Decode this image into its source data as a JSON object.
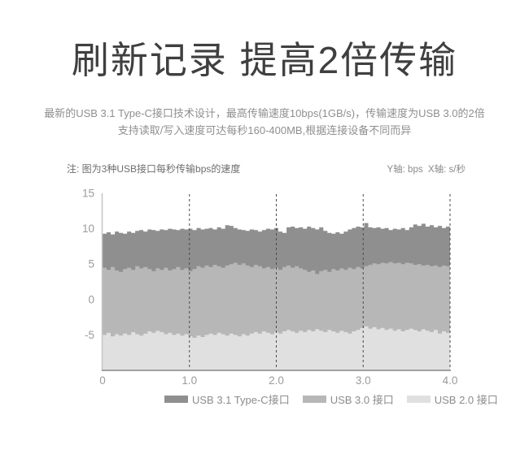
{
  "header": {
    "title": "刷新记录 提高2倍传输",
    "subtitle_line1": "最新的USB 3.1 Type-C接口技术设计，最高传输速度10bps(1GB/s)，传输速度为USB 3.0的2倍",
    "subtitle_line2": "支持读取/写入速度可达每秒160-400MB,根据连接设备不同而异"
  },
  "note": {
    "left": "注: 图为3种USB接口每秒传输bps的速度",
    "right": "Y轴: bps  X轴: s/秒"
  },
  "chart_data": {
    "type": "area",
    "title": "",
    "xlabel": "s/秒",
    "ylabel": "bps",
    "xlim": [
      0,
      4
    ],
    "ylim": [
      -10,
      15
    ],
    "x_ticks": [
      "0",
      "1.0",
      "2.0",
      "3.0",
      "4.0"
    ],
    "x_tick_values": [
      0,
      1,
      2,
      3,
      4
    ],
    "y_ticks": [
      "15",
      "10",
      "5",
      "0",
      "-5"
    ],
    "y_tick_values": [
      15,
      10,
      5,
      0,
      -5
    ],
    "grid": "vertical-dashed-at-1-2-3-4",
    "legend_position": "bottom",
    "interpolation": "step",
    "baseline": -10,
    "colors": {
      "axis": "#c6c6c6",
      "baseline_axis": "#a0a0a0",
      "gridline": "#4a4a4a",
      "tick_label": "#9b9b9b"
    },
    "series": [
      {
        "id": "usb-3-1-type-c",
        "name": "USB 3.1 Type-C接口",
        "color": "#8f8f8f",
        "values": [
          9.3,
          9.5,
          9.2,
          9.6,
          9.4,
          9.3,
          9.6,
          9.4,
          9.7,
          9.8,
          9.6,
          9.9,
          9.8,
          9.7,
          9.9,
          9.8,
          10.0,
          9.9,
          9.8,
          10.0,
          9.9,
          10.0,
          9.8,
          10.1,
          9.9,
          10.0,
          10.1,
          9.9,
          10.2,
          10.0,
          10.5,
          10.4,
          10.1,
          9.9,
          9.8,
          9.7,
          9.9,
          9.8,
          9.6,
          9.8,
          10.0,
          9.9,
          10.1,
          9.6,
          9.4,
          10.2,
          10.3,
          10.1,
          10.2,
          10.0,
          10.3,
          10.1,
          9.9,
          10.2,
          9.7,
          9.4,
          9.3,
          9.5,
          9.3,
          9.6,
          9.9,
          10.1,
          10.3,
          10.2,
          10.8,
          10.2,
          10.1,
          10.2,
          10.0,
          10.1,
          9.8,
          10.0,
          9.9,
          10.1,
          9.8,
          10.2,
          10.6,
          10.4,
          10.7,
          10.3,
          10.5,
          10.2,
          10.4,
          10.1,
          10.3,
          10.2
        ]
      },
      {
        "id": "usb-3-0",
        "name": "USB 3.0 接口",
        "color": "#b7b7b7",
        "values": [
          4.5,
          4.2,
          4.6,
          4.1,
          3.9,
          4.3,
          4.5,
          4.2,
          4.7,
          4.4,
          4.6,
          4.3,
          4.0,
          4.4,
          4.2,
          4.5,
          4.1,
          4.3,
          4.6,
          4.2,
          4.4,
          4.0,
          4.3,
          4.7,
          4.5,
          4.8,
          4.6,
          4.9,
          4.7,
          4.5,
          4.8,
          5.0,
          5.2,
          4.9,
          5.1,
          4.8,
          4.6,
          4.9,
          4.7,
          4.4,
          4.6,
          4.3,
          4.5,
          4.2,
          4.6,
          4.8,
          4.5,
          4.7,
          4.4,
          4.2,
          3.9,
          4.1,
          3.6,
          4.0,
          4.2,
          3.9,
          4.3,
          4.1,
          4.4,
          4.2,
          4.5,
          4.3,
          4.6,
          4.4,
          4.7,
          4.9,
          5.1,
          5.0,
          5.2,
          5.1,
          5.3,
          5.1,
          5.2,
          5.0,
          5.2,
          5.1,
          4.9,
          5.0,
          4.8,
          4.9,
          4.7,
          4.8,
          4.6,
          4.8,
          4.7,
          4.8
        ]
      },
      {
        "id": "usb-2-0",
        "name": "USB 2.0 接口",
        "color": "#e0e0e0",
        "values": [
          -5.0,
          -4.7,
          -5.2,
          -4.9,
          -5.1,
          -4.8,
          -5.0,
          -4.6,
          -4.9,
          -5.1,
          -4.8,
          -4.5,
          -4.7,
          -4.4,
          -4.6,
          -4.9,
          -4.7,
          -5.0,
          -4.8,
          -5.1,
          -4.9,
          -5.2,
          -5.4,
          -5.1,
          -5.3,
          -5.0,
          -4.8,
          -5.0,
          -4.7,
          -4.9,
          -5.1,
          -4.8,
          -5.0,
          -5.2,
          -4.9,
          -5.1,
          -4.8,
          -4.6,
          -4.8,
          -4.5,
          -4.7,
          -4.9,
          -4.6,
          -4.8,
          -4.5,
          -4.3,
          -4.5,
          -4.7,
          -4.4,
          -4.6,
          -4.3,
          -4.5,
          -4.2,
          -4.4,
          -4.6,
          -4.3,
          -4.5,
          -4.7,
          -4.4,
          -4.6,
          -4.8,
          -4.5,
          -4.3,
          -4.0,
          -3.8,
          -4.1,
          -3.9,
          -4.2,
          -4.0,
          -4.3,
          -4.1,
          -4.4,
          -4.2,
          -4.5,
          -4.3,
          -4.1,
          -4.3,
          -4.5,
          -4.2,
          -4.4,
          -4.6,
          -4.3,
          -4.8,
          -4.5,
          -4.7,
          -4.9
        ]
      }
    ]
  }
}
